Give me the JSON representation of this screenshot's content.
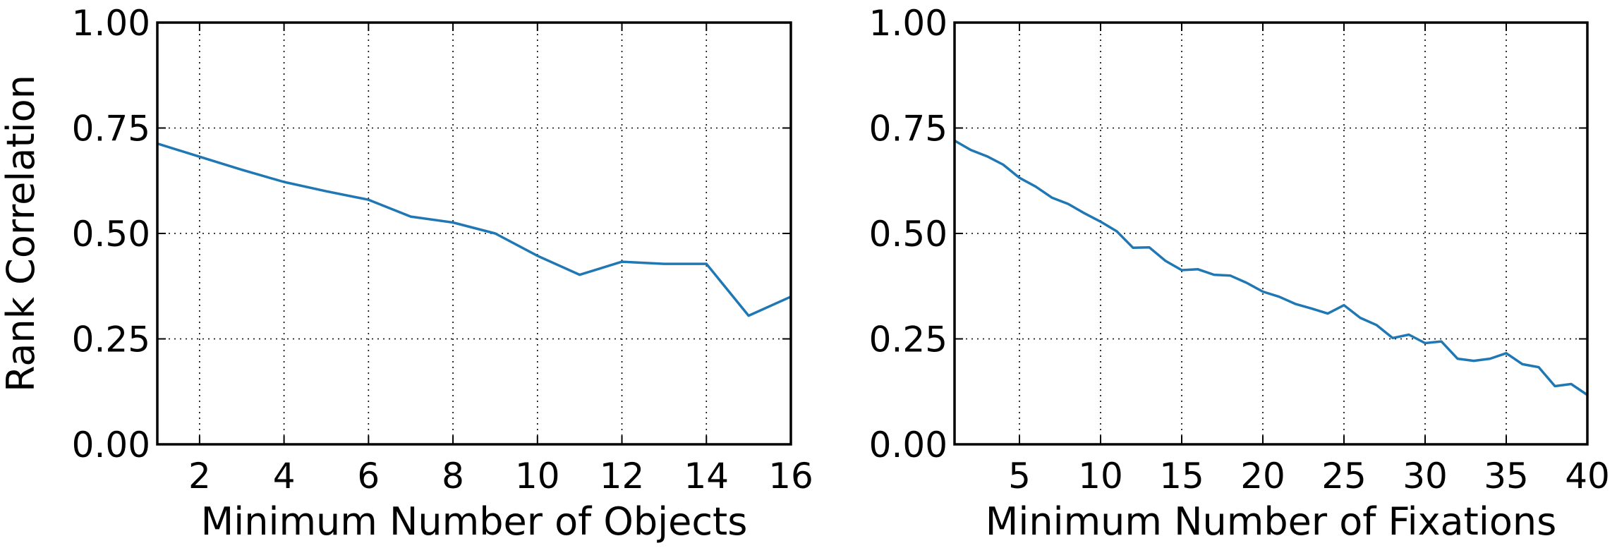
{
  "chart_data": [
    {
      "type": "line",
      "title": "",
      "xlabel": "Minimum Number of Objects",
      "ylabel": "Rank Correlation",
      "xlim": [
        1,
        16
      ],
      "ylim": [
        0.0,
        1.0
      ],
      "xticks": [
        2,
        4,
        6,
        8,
        10,
        12,
        14,
        16
      ],
      "xtick_labels": [
        "2",
        "4",
        "6",
        "8",
        "10",
        "12",
        "14",
        "16"
      ],
      "yticks": [
        0.0,
        0.25,
        0.5,
        0.75,
        1.0
      ],
      "ytick_labels": [
        "0.00",
        "0.25",
        "0.50",
        "0.75",
        "1.00"
      ],
      "grid": true,
      "color": "#1f77b4",
      "series": [
        {
          "x": [
            1,
            2,
            3,
            4,
            5,
            6,
            7,
            8,
            9,
            10,
            11,
            12,
            13,
            14,
            15,
            16
          ],
          "values": [
            0.713,
            0.682,
            0.651,
            0.622,
            0.6,
            0.58,
            0.54,
            0.526,
            0.5,
            0.447,
            0.402,
            0.433,
            0.428,
            0.428,
            0.305,
            0.35
          ]
        }
      ]
    },
    {
      "type": "line",
      "title": "",
      "xlabel": "Minimum Number of Fixations",
      "ylabel": "",
      "xlim": [
        1,
        40
      ],
      "ylim": [
        0.0,
        1.0
      ],
      "xticks": [
        5,
        10,
        15,
        20,
        25,
        30,
        35,
        40
      ],
      "xtick_labels": [
        "5",
        "10",
        "15",
        "20",
        "25",
        "30",
        "35",
        "40"
      ],
      "yticks": [
        0.0,
        0.25,
        0.5,
        0.75,
        1.0
      ],
      "ytick_labels": [
        "0.00",
        "0.25",
        "0.50",
        "0.75",
        "1.00"
      ],
      "grid": true,
      "color": "#1f77b4",
      "series": [
        {
          "x": [
            1,
            2,
            3,
            4,
            5,
            6,
            7,
            8,
            9,
            10,
            11,
            12,
            13,
            14,
            15,
            16,
            17,
            18,
            19,
            20,
            21,
            22,
            23,
            24,
            25,
            26,
            27,
            28,
            29,
            30,
            31,
            32,
            33,
            34,
            35,
            36,
            37,
            38,
            39,
            40
          ],
          "values": [
            0.72,
            0.698,
            0.683,
            0.663,
            0.632,
            0.611,
            0.585,
            0.57,
            0.548,
            0.528,
            0.505,
            0.466,
            0.467,
            0.435,
            0.413,
            0.415,
            0.402,
            0.4,
            0.383,
            0.362,
            0.35,
            0.333,
            0.322,
            0.31,
            0.33,
            0.3,
            0.283,
            0.252,
            0.26,
            0.24,
            0.244,
            0.203,
            0.198,
            0.203,
            0.216,
            0.19,
            0.183,
            0.138,
            0.143,
            0.117
          ]
        }
      ]
    }
  ]
}
